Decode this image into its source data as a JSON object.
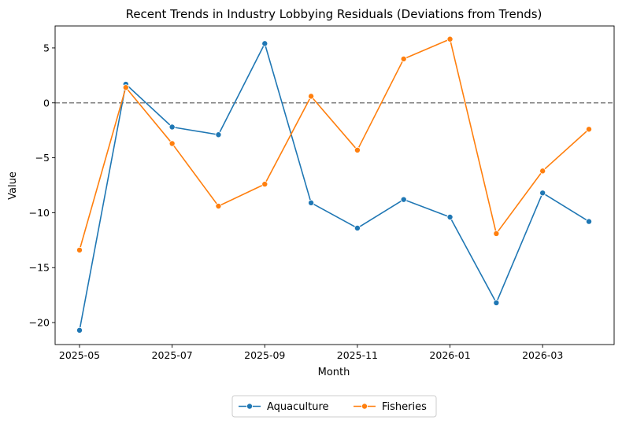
{
  "chart_data": {
    "type": "line",
    "title": "Recent Trends in Industry Lobbying Residuals (Deviations from Trends)",
    "xlabel": "Month",
    "ylabel": "Value",
    "x": [
      "2025-05",
      "2025-06",
      "2025-07",
      "2025-08",
      "2025-09",
      "2025-10",
      "2025-11",
      "2025-12",
      "2026-01",
      "2026-02",
      "2026-03",
      "2026-04"
    ],
    "x_tick_labels": [
      "2025-05",
      "2025-07",
      "2025-09",
      "2025-11",
      "2026-01",
      "2026-03"
    ],
    "y_ticks": [
      5,
      0,
      -5,
      -10,
      -15,
      -20
    ],
    "y_tick_labels": [
      "5",
      "0",
      "−5",
      "−10",
      "−15",
      "−20"
    ],
    "ylim": [
      -22.0,
      7.0
    ],
    "reference_line": {
      "y": 0,
      "style": "dashed",
      "color": "#808080"
    },
    "series": [
      {
        "name": "Aquaculture",
        "color": "#1f77b4",
        "values": [
          -20.7,
          1.7,
          -2.2,
          -2.9,
          5.4,
          -9.1,
          -11.4,
          -8.8,
          -10.4,
          -18.2,
          -8.2,
          -10.8
        ]
      },
      {
        "name": "Fisheries",
        "color": "#ff7f0e",
        "values": [
          -13.4,
          1.4,
          -3.7,
          -9.4,
          -7.4,
          0.6,
          -4.3,
          4.0,
          5.8,
          -11.9,
          -6.2,
          -2.4
        ]
      }
    ],
    "grid": false,
    "legend": {
      "placement": "bottom-center",
      "entries": [
        "Aquaculture",
        "Fisheries"
      ]
    }
  }
}
